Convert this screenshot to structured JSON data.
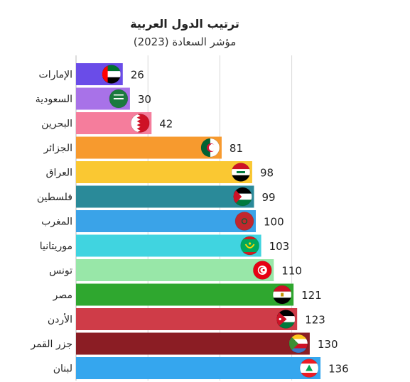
{
  "chart_data": {
    "type": "bar",
    "orientation": "horizontal",
    "title": "ترتيب الدول العربية",
    "subtitle": "مؤشر السعادة (2023)",
    "categories": [
      "الإمارات",
      "السعودية",
      "البحرين",
      "الجزائر",
      "العراق",
      "فلسطين",
      "المغرب",
      "موريتانيا",
      "تونس",
      "مصر",
      "الأردن",
      "جزر القمر",
      "لبنان"
    ],
    "values": [
      26,
      30,
      42,
      81,
      98,
      99,
      100,
      103,
      110,
      121,
      123,
      130,
      136
    ],
    "bar_colors": [
      "#6a4ce8",
      "#a872e8",
      "#f57d9c",
      "#f79a2e",
      "#fac832",
      "#2a8a99",
      "#3aa3e8",
      "#40d4e0",
      "#98e7a8",
      "#2fa72f",
      "#cf3c48",
      "#8b1d24",
      "#35a6ee"
    ],
    "flag_icons": [
      "uae-flag-icon",
      "saudi-flag-icon",
      "bahrain-flag-icon",
      "algeria-flag-icon",
      "iraq-flag-icon",
      "palestine-flag-icon",
      "morocco-flag-icon",
      "mauritania-flag-icon",
      "tunisia-flag-icon",
      "egypt-flag-icon",
      "jordan-flag-icon",
      "comoros-flag-icon",
      "lebanon-flag-icon"
    ],
    "xlim": [
      0,
      160
    ],
    "gridlines": [
      40,
      80,
      120
    ],
    "grid": true,
    "xlabel": "",
    "ylabel": ""
  }
}
